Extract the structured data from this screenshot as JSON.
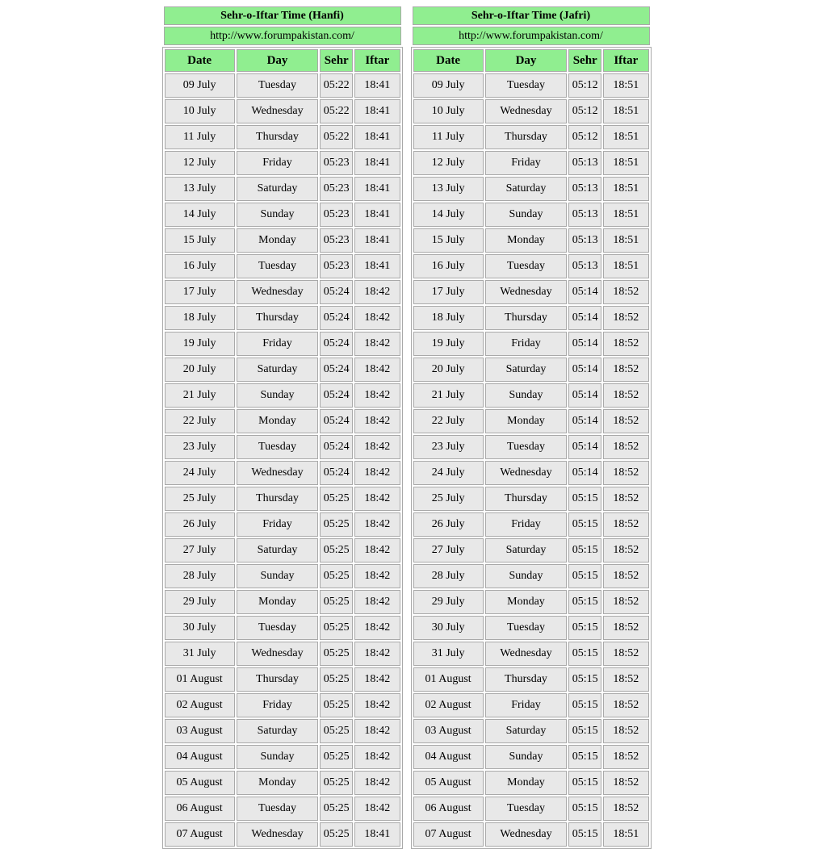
{
  "colors": {
    "header_green": "#90EE90",
    "row_gray": "#e8e8e8",
    "border_gray": "#a9a9a9",
    "text": "#000000",
    "background": "#ffffff"
  },
  "tables": [
    {
      "id": "hanfi",
      "title": "Sehr-o-Iftar Time (Hanfi)",
      "url": "http://www.forumpakistan.com/",
      "columns": [
        "Date",
        "Day",
        "Sehr",
        "Iftar"
      ],
      "rows": [
        [
          "09 July",
          "Tuesday",
          "05:22",
          "18:41"
        ],
        [
          "10 July",
          "Wednesday",
          "05:22",
          "18:41"
        ],
        [
          "11 July",
          "Thursday",
          "05:22",
          "18:41"
        ],
        [
          "12 July",
          "Friday",
          "05:23",
          "18:41"
        ],
        [
          "13 July",
          "Saturday",
          "05:23",
          "18:41"
        ],
        [
          "14 July",
          "Sunday",
          "05:23",
          "18:41"
        ],
        [
          "15 July",
          "Monday",
          "05:23",
          "18:41"
        ],
        [
          "16 July",
          "Tuesday",
          "05:23",
          "18:41"
        ],
        [
          "17 July",
          "Wednesday",
          "05:24",
          "18:42"
        ],
        [
          "18 July",
          "Thursday",
          "05:24",
          "18:42"
        ],
        [
          "19 July",
          "Friday",
          "05:24",
          "18:42"
        ],
        [
          "20 July",
          "Saturday",
          "05:24",
          "18:42"
        ],
        [
          "21 July",
          "Sunday",
          "05:24",
          "18:42"
        ],
        [
          "22 July",
          "Monday",
          "05:24",
          "18:42"
        ],
        [
          "23 July",
          "Tuesday",
          "05:24",
          "18:42"
        ],
        [
          "24 July",
          "Wednesday",
          "05:24",
          "18:42"
        ],
        [
          "25 July",
          "Thursday",
          "05:25",
          "18:42"
        ],
        [
          "26 July",
          "Friday",
          "05:25",
          "18:42"
        ],
        [
          "27 July",
          "Saturday",
          "05:25",
          "18:42"
        ],
        [
          "28 July",
          "Sunday",
          "05:25",
          "18:42"
        ],
        [
          "29 July",
          "Monday",
          "05:25",
          "18:42"
        ],
        [
          "30 July",
          "Tuesday",
          "05:25",
          "18:42"
        ],
        [
          "31 July",
          "Wednesday",
          "05:25",
          "18:42"
        ],
        [
          "01 August",
          "Thursday",
          "05:25",
          "18:42"
        ],
        [
          "02 August",
          "Friday",
          "05:25",
          "18:42"
        ],
        [
          "03 August",
          "Saturday",
          "05:25",
          "18:42"
        ],
        [
          "04 August",
          "Sunday",
          "05:25",
          "18:42"
        ],
        [
          "05 August",
          "Monday",
          "05:25",
          "18:42"
        ],
        [
          "06 August",
          "Tuesday",
          "05:25",
          "18:42"
        ],
        [
          "07 August",
          "Wednesday",
          "05:25",
          "18:41"
        ]
      ]
    },
    {
      "id": "jafri",
      "title": "Sehr-o-Iftar Time (Jafri)",
      "url": "http://www.forumpakistan.com/",
      "columns": [
        "Date",
        "Day",
        "Sehr",
        "Iftar"
      ],
      "rows": [
        [
          "09 July",
          "Tuesday",
          "05:12",
          "18:51"
        ],
        [
          "10 July",
          "Wednesday",
          "05:12",
          "18:51"
        ],
        [
          "11 July",
          "Thursday",
          "05:12",
          "18:51"
        ],
        [
          "12 July",
          "Friday",
          "05:13",
          "18:51"
        ],
        [
          "13 July",
          "Saturday",
          "05:13",
          "18:51"
        ],
        [
          "14 July",
          "Sunday",
          "05:13",
          "18:51"
        ],
        [
          "15 July",
          "Monday",
          "05:13",
          "18:51"
        ],
        [
          "16 July",
          "Tuesday",
          "05:13",
          "18:51"
        ],
        [
          "17 July",
          "Wednesday",
          "05:14",
          "18:52"
        ],
        [
          "18 July",
          "Thursday",
          "05:14",
          "18:52"
        ],
        [
          "19 July",
          "Friday",
          "05:14",
          "18:52"
        ],
        [
          "20 July",
          "Saturday",
          "05:14",
          "18:52"
        ],
        [
          "21 July",
          "Sunday",
          "05:14",
          "18:52"
        ],
        [
          "22 July",
          "Monday",
          "05:14",
          "18:52"
        ],
        [
          "23 July",
          "Tuesday",
          "05:14",
          "18:52"
        ],
        [
          "24 July",
          "Wednesday",
          "05:14",
          "18:52"
        ],
        [
          "25 July",
          "Thursday",
          "05:15",
          "18:52"
        ],
        [
          "26 July",
          "Friday",
          "05:15",
          "18:52"
        ],
        [
          "27 July",
          "Saturday",
          "05:15",
          "18:52"
        ],
        [
          "28 July",
          "Sunday",
          "05:15",
          "18:52"
        ],
        [
          "29 July",
          "Monday",
          "05:15",
          "18:52"
        ],
        [
          "30 July",
          "Tuesday",
          "05:15",
          "18:52"
        ],
        [
          "31 July",
          "Wednesday",
          "05:15",
          "18:52"
        ],
        [
          "01 August",
          "Thursday",
          "05:15",
          "18:52"
        ],
        [
          "02 August",
          "Friday",
          "05:15",
          "18:52"
        ],
        [
          "03 August",
          "Saturday",
          "05:15",
          "18:52"
        ],
        [
          "04 August",
          "Sunday",
          "05:15",
          "18:52"
        ],
        [
          "05 August",
          "Monday",
          "05:15",
          "18:52"
        ],
        [
          "06 August",
          "Tuesday",
          "05:15",
          "18:52"
        ],
        [
          "07 August",
          "Wednesday",
          "05:15",
          "18:51"
        ]
      ]
    }
  ]
}
